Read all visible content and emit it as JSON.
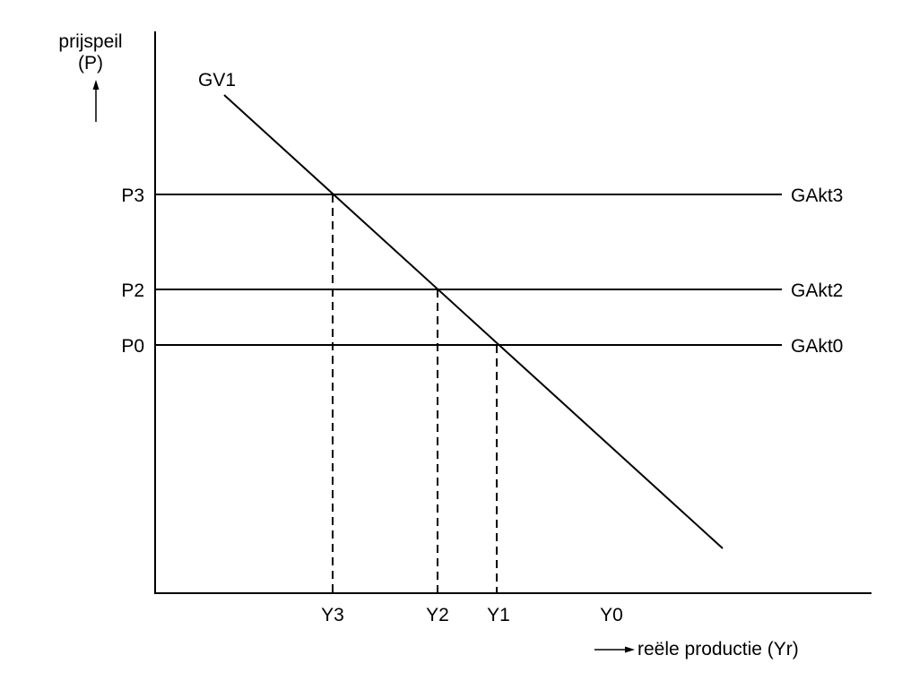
{
  "axes": {
    "y_label_line1": "prijspeil",
    "y_label_line2": "(P)",
    "x_label": "reële productie (Yr)"
  },
  "curves": {
    "demand": "GV1",
    "supply_3": "GAkt3",
    "supply_2": "GAkt2",
    "supply_0": "GAkt0"
  },
  "price_levels": {
    "p3": "P3",
    "p2": "P2",
    "p0": "P0"
  },
  "output_levels": {
    "y3": "Y3",
    "y2": "Y2",
    "y1": "Y1",
    "y0": "Y0"
  }
}
